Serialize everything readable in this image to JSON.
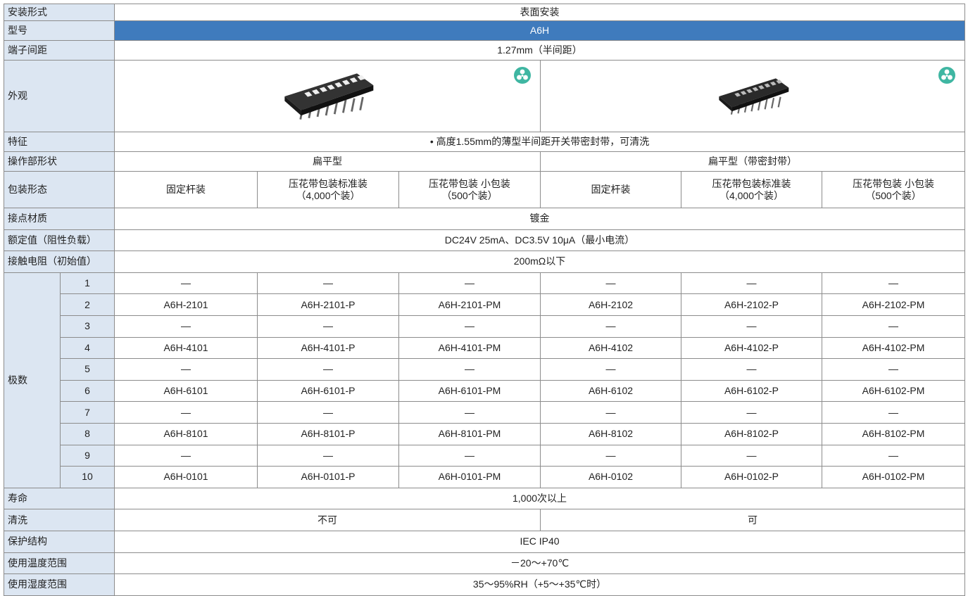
{
  "table": {
    "mounting": {
      "label": "安装形式",
      "value": "表面安装"
    },
    "model": {
      "label": "型号",
      "value": "A6H"
    },
    "pitch": {
      "label": "端子间距",
      "value": "1.27mm（半间距）"
    },
    "appearance": {
      "label": "外观"
    },
    "feature": {
      "label": "特征",
      "value": "• 高度1.55mm的薄型半间距开关带密封带，可清洗"
    },
    "actuator": {
      "label": "操作部形状",
      "values": [
        "扁平型",
        "扁平型（带密封带）"
      ]
    },
    "packaging": {
      "label": "包装形态",
      "values": [
        [
          "固定杆装"
        ],
        [
          "压花带包装标准装",
          "（4,000个装）"
        ],
        [
          "压花带包装 小包装",
          "（500个装）"
        ],
        [
          "固定杆装"
        ],
        [
          "压花带包装标准装",
          "（4,000个装）"
        ],
        [
          "压花带包装 小包装",
          "（500个装）"
        ]
      ]
    },
    "contact_material": {
      "label": "接点材质",
      "value": "镀金"
    },
    "rating": {
      "label": "额定值（阻性负载）",
      "value": "DC24V 25mA、DC3.5V 10μA（最小电流）"
    },
    "contact_resistance": {
      "label": "接触电阻（初始值）",
      "value": "200mΩ以下"
    },
    "poles": {
      "label": "极数",
      "rows": [
        {
          "number": 1,
          "models": [
            "—",
            "—",
            "—",
            "—",
            "—",
            "—"
          ]
        },
        {
          "number": 2,
          "models": [
            "A6H-2101",
            "A6H-2101-P",
            "A6H-2101-PM",
            "A6H-2102",
            "A6H-2102-P",
            "A6H-2102-PM"
          ]
        },
        {
          "number": 3,
          "models": [
            "—",
            "—",
            "—",
            "—",
            "—",
            "—"
          ]
        },
        {
          "number": 4,
          "models": [
            "A6H-4101",
            "A6H-4101-P",
            "A6H-4101-PM",
            "A6H-4102",
            "A6H-4102-P",
            "A6H-4102-PM"
          ]
        },
        {
          "number": 5,
          "models": [
            "—",
            "—",
            "—",
            "—",
            "—",
            "—"
          ]
        },
        {
          "number": 6,
          "models": [
            "A6H-6101",
            "A6H-6101-P",
            "A6H-6101-PM",
            "A6H-6102",
            "A6H-6102-P",
            "A6H-6102-PM"
          ]
        },
        {
          "number": 7,
          "models": [
            "—",
            "—",
            "—",
            "—",
            "—",
            "—"
          ]
        },
        {
          "number": 8,
          "models": [
            "A6H-8101",
            "A6H-8101-P",
            "A6H-8101-PM",
            "A6H-8102",
            "A6H-8102-P",
            "A6H-8102-PM"
          ]
        },
        {
          "number": 9,
          "models": [
            "—",
            "—",
            "—",
            "—",
            "—",
            "—"
          ]
        },
        {
          "number": 10,
          "models": [
            "A6H-0101",
            "A6H-0101-P",
            "A6H-0101-PM",
            "A6H-0102",
            "A6H-0102-P",
            "A6H-0102-PM"
          ]
        }
      ]
    },
    "life": {
      "label": "寿命",
      "value": "1,000次以上"
    },
    "washing": {
      "label": "清洗",
      "values": [
        "不可",
        "可"
      ]
    },
    "protection": {
      "label": "保护结构",
      "value": "IEC IP40"
    },
    "temperature": {
      "label": "使用温度范围",
      "value": "－20～+70℃"
    },
    "humidity": {
      "label": "使用湿度范围",
      "value": "35～95%RH（+5～+35℃时）"
    }
  }
}
